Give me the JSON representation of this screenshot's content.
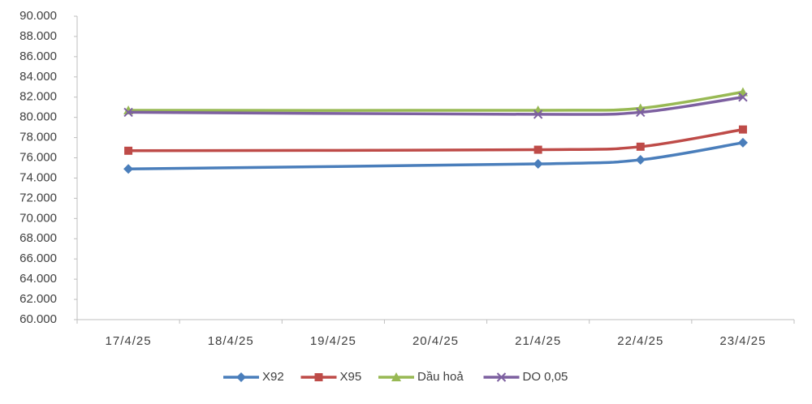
{
  "chart_data": {
    "type": "line",
    "x": [
      "17/4/25",
      "21/4/25",
      "22/4/25",
      "23/4/25"
    ],
    "xticks": [
      "17/4/25",
      "18/4/25",
      "19/4/25",
      "20/4/25",
      "21/4/25",
      "22/4/25",
      "23/4/25"
    ],
    "ylim": [
      60000,
      90000
    ],
    "yticks": [
      {
        "value": 60000,
        "label": "60.000"
      },
      {
        "value": 62000,
        "label": "62.000"
      },
      {
        "value": 64000,
        "label": "64.000"
      },
      {
        "value": 66000,
        "label": "66.000"
      },
      {
        "value": 68000,
        "label": "68.000"
      },
      {
        "value": 70000,
        "label": "70.000"
      },
      {
        "value": 72000,
        "label": "72.000"
      },
      {
        "value": 74000,
        "label": "74.000"
      },
      {
        "value": 76000,
        "label": "76.000"
      },
      {
        "value": 78000,
        "label": "78.000"
      },
      {
        "value": 80000,
        "label": "80.000"
      },
      {
        "value": 82000,
        "label": "82.000"
      },
      {
        "value": 84000,
        "label": "84.000"
      },
      {
        "value": 86000,
        "label": "86.000"
      },
      {
        "value": 88000,
        "label": "88.000"
      },
      {
        "value": 90000,
        "label": "90.000"
      }
    ],
    "grid": false,
    "legend": "bottom",
    "series": [
      {
        "name": "X92",
        "color": "#4a7ebb",
        "marker": "diamond",
        "values": [
          74900,
          75400,
          75800,
          77500
        ]
      },
      {
        "name": "X95",
        "color": "#be4b48",
        "marker": "square",
        "values": [
          76700,
          76800,
          77100,
          78800
        ]
      },
      {
        "name": "Dầu hoả",
        "color": "#98b954",
        "marker": "triangle",
        "values": [
          80700,
          80700,
          80900,
          82500
        ]
      },
      {
        "name": "DO 0,05",
        "color": "#7d60a0",
        "marker": "cross",
        "values": [
          80500,
          80300,
          80500,
          82000
        ]
      }
    ]
  }
}
